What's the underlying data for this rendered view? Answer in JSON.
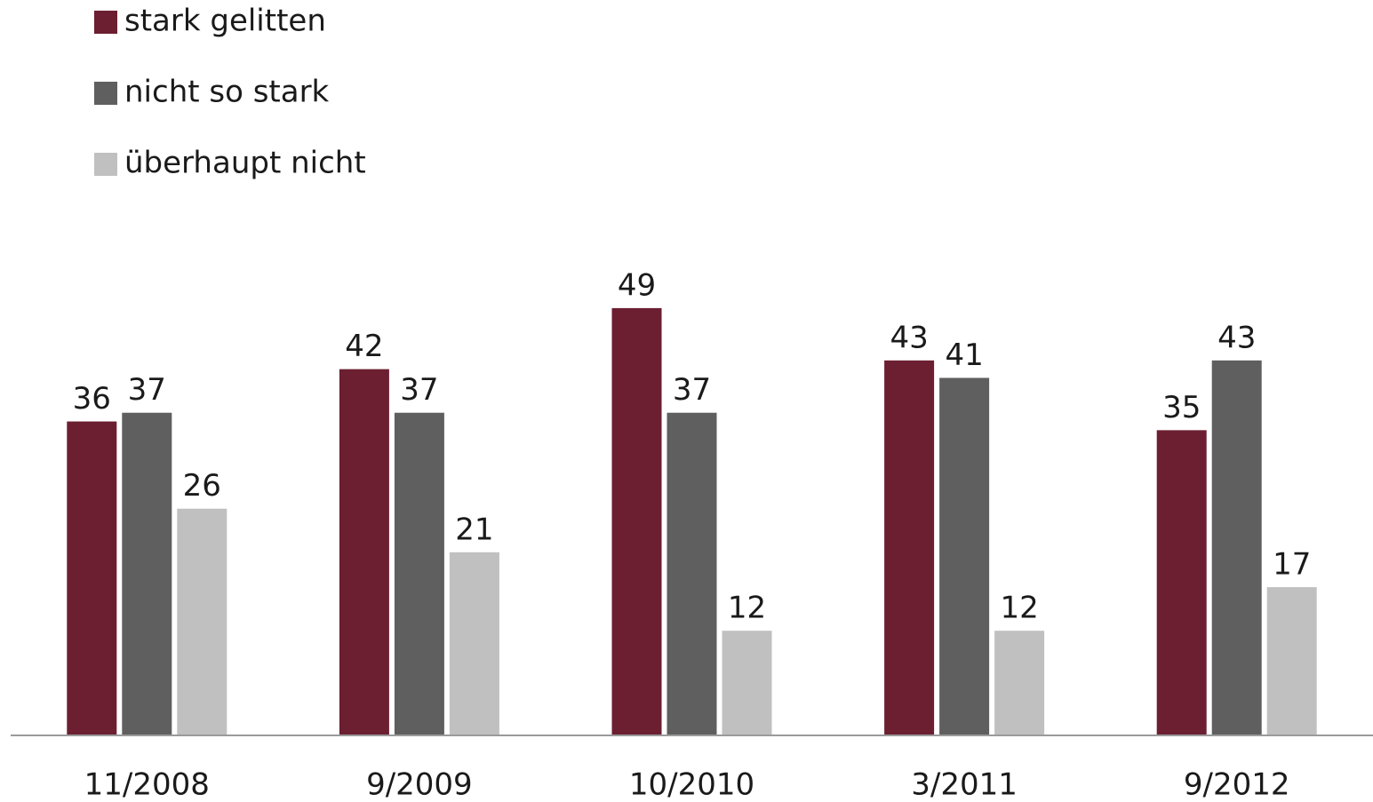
{
  "chart_data": {
    "type": "bar",
    "categories": [
      "11/2008",
      "9/2009",
      "10/2010",
      "3/2011",
      "9/2012"
    ],
    "series": [
      {
        "name": "stark gelitten",
        "color": "#6b1f30",
        "values": [
          36,
          42,
          49,
          43,
          35
        ]
      },
      {
        "name": "nicht so stark",
        "color": "#5f5f5f",
        "values": [
          37,
          37,
          37,
          41,
          43
        ]
      },
      {
        "name": "überhaupt nicht",
        "color": "#c0c0c0",
        "values": [
          26,
          21,
          12,
          12,
          17
        ]
      }
    ],
    "ylim": [
      0,
      55
    ],
    "legend": "top-left"
  }
}
